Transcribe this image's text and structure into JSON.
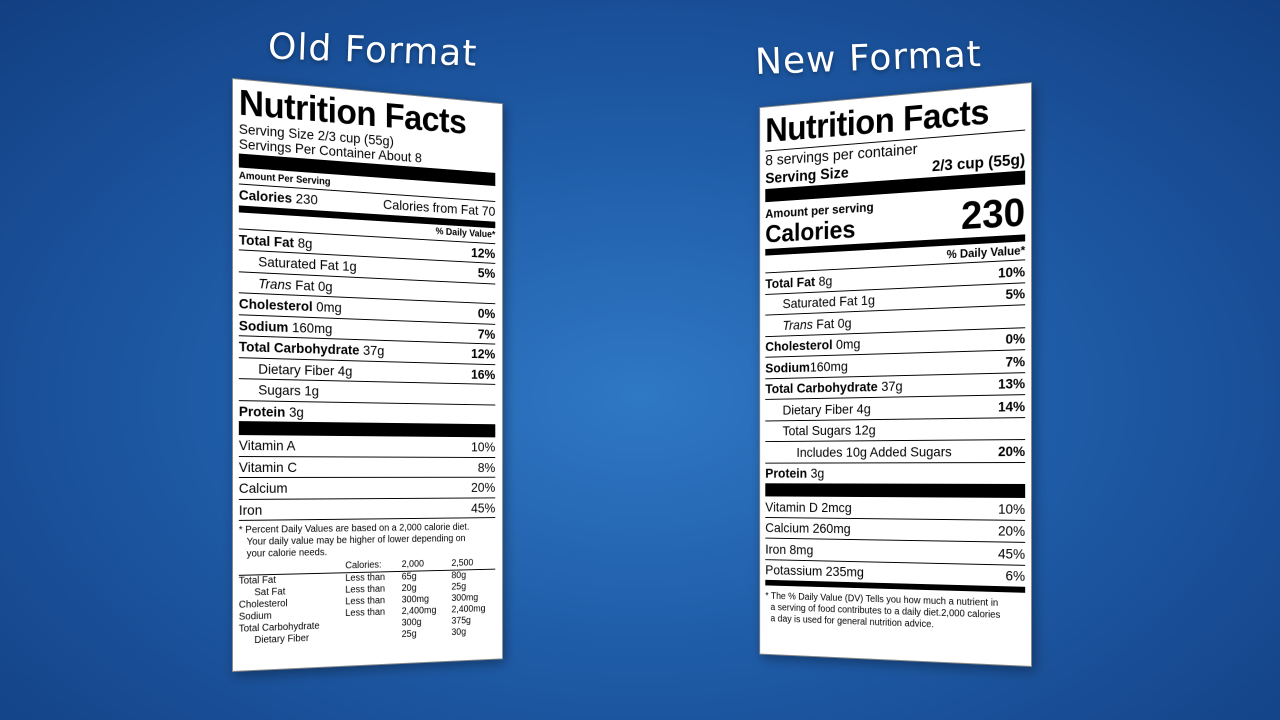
{
  "old": {
    "heading": "Old Format",
    "title": "Nutrition Facts",
    "serving_size": "Serving Size 2/3 cup (55g)",
    "servings_per_container": "Servings Per Container About 8",
    "amount_per_serving": "Amount Per Serving",
    "calories_label": "Calories",
    "calories_value": "230",
    "calories_from_fat": "Calories from Fat 70",
    "daily_value_header": "% Daily Value*",
    "nutrients": [
      {
        "label": "Total Fat",
        "amount": "8g",
        "dv": "12%"
      },
      {
        "label": "Saturated Fat",
        "amount": "1g",
        "dv": "5%"
      },
      {
        "label": "Trans",
        "label_rest": "Fat 0g",
        "dv": ""
      },
      {
        "label": "Cholesterol",
        "amount": "0mg",
        "dv": "0%"
      },
      {
        "label": "Sodium",
        "amount": "160mg",
        "dv": "7%"
      },
      {
        "label": "Total Carbohydrate",
        "amount": "37g",
        "dv": "12%"
      },
      {
        "label": "Dietary Fiber",
        "amount": "4g",
        "dv": "16%"
      },
      {
        "label": "Sugars",
        "amount": "1g",
        "dv": ""
      },
      {
        "label": "Protein",
        "amount": "3g",
        "dv": ""
      }
    ],
    "vitamins": [
      {
        "label": "Vitamin A",
        "dv": "10%"
      },
      {
        "label": "Vitamin C",
        "dv": "8%"
      },
      {
        "label": "Calcium",
        "dv": "20%"
      },
      {
        "label": "Iron",
        "dv": "45%"
      }
    ],
    "footnote_1": "* Percent Daily Values are based on a 2,000 calorie diet.",
    "footnote_2": "Your daily value may be higher of lower depending on",
    "footnote_3": "your calorie needs.",
    "table": {
      "calories_label": "Calories:",
      "col_2000": "2,000",
      "col_2500": "2,500",
      "rows": [
        {
          "name": "Total Fat",
          "cond": "Less than",
          "a": "65g",
          "b": "80g"
        },
        {
          "name": "Sat Fat",
          "cond": "Less than",
          "a": "20g",
          "b": "25g"
        },
        {
          "name": "Cholesterol",
          "cond": "Less than",
          "a": "300mg",
          "b": "300mg"
        },
        {
          "name": "Sodium",
          "cond": "Less than",
          "a": "2,400mg",
          "b": "2,400mg"
        },
        {
          "name": "Total Carbohydrate",
          "cond": "",
          "a": "300g",
          "b": "375g"
        },
        {
          "name": "Dietary Fiber",
          "cond": "",
          "a": "25g",
          "b": "30g"
        }
      ]
    }
  },
  "new": {
    "heading": "New Format",
    "title": "Nutrition Facts",
    "servings_per_container": "8 servings per container",
    "serving_size_label": "Serving Size",
    "serving_size_value": "2/3 cup (55g)",
    "amount_per_serving": "Amount per serving",
    "calories_label": "Calories",
    "calories_value": "230",
    "daily_value_header": "% Daily Value*",
    "nutrients": [
      {
        "label": "Total Fat",
        "amount": "8g",
        "dv": "10%"
      },
      {
        "label": "Saturated Fat",
        "amount": "1g",
        "dv": "5%"
      },
      {
        "label": "Trans",
        "label_rest": "Fat 0g",
        "dv": ""
      },
      {
        "label": "Cholesterol",
        "amount": "0mg",
        "dv": "0%"
      },
      {
        "label": "Sodium",
        "amount": "160mg",
        "dv": "7%"
      },
      {
        "label": "Total Carbohydrate",
        "amount": "37g",
        "dv": "13%"
      },
      {
        "label": "Dietary Fiber",
        "amount": "4g",
        "dv": "14%"
      },
      {
        "label": "Total Sugars",
        "amount": "12g",
        "dv": ""
      },
      {
        "label": "Includes 10g Added Sugars",
        "amount": "",
        "dv": "20%"
      },
      {
        "label": "Protein",
        "amount": "3g",
        "dv": ""
      }
    ],
    "minerals": [
      {
        "label": "Vitamin D 2mcg",
        "dv": "10%"
      },
      {
        "label": "Calcium 260mg",
        "dv": "20%"
      },
      {
        "label": "Iron 8mg",
        "dv": "45%"
      },
      {
        "label": "Potassium 235mg",
        "dv": "6%"
      }
    ],
    "footnote_1": "* The % Daily Value (DV) Tells you how much a nutrient in",
    "footnote_2": "a serving of food contributes to a daily diet.2,000 calories",
    "footnote_3": "a day is used for general nutrition advice."
  },
  "colors": {
    "background": "#1f5ca8",
    "label": "#ffffff",
    "text": "#000000"
  }
}
